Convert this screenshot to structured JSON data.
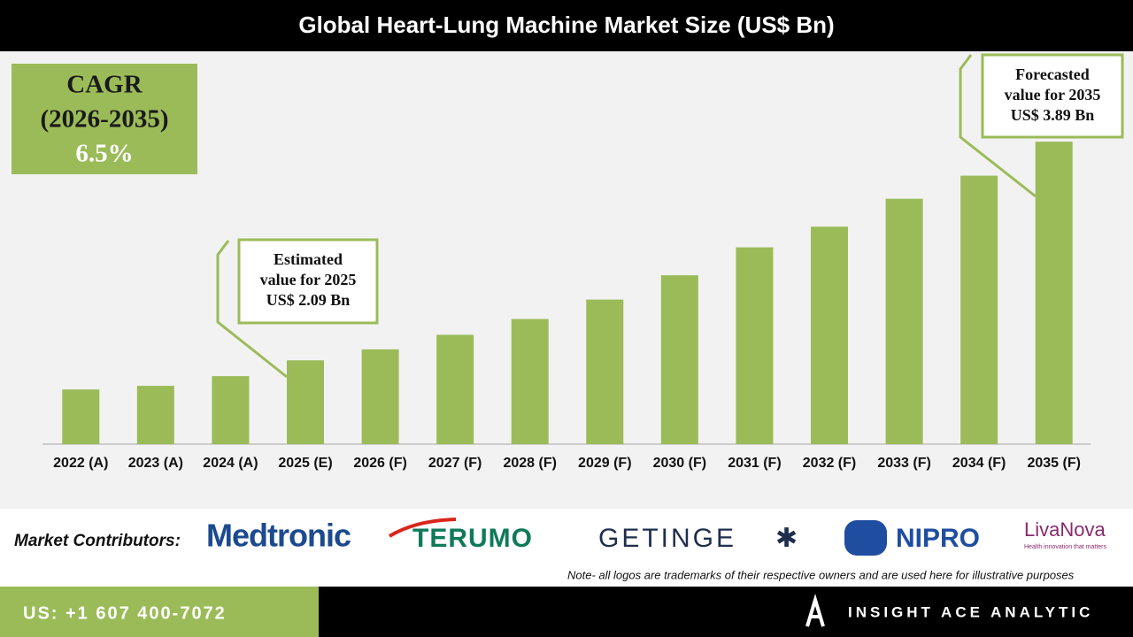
{
  "chart_data": {
    "type": "bar",
    "title": "Global Heart-Lung Machine Market Size (US$ Bn)",
    "categories": [
      "2022 (A)",
      "2023 (A)",
      "2024 (A)",
      "2025 (E)",
      "2026 (F)",
      "2027 (F)",
      "2028 (F)",
      "2029 (F)",
      "2030 (F)",
      "2031 (F)",
      "2032 (F)",
      "2033 (F)",
      "2034 (F)",
      "2035 (F)"
    ],
    "values": [
      1.85,
      1.88,
      1.96,
      2.09,
      2.18,
      2.3,
      2.43,
      2.59,
      2.79,
      3.02,
      3.19,
      3.42,
      3.61,
      3.89
    ],
    "color": "#9bbb59",
    "ylim": [
      1.4,
      4.0
    ],
    "annotations": [
      {
        "lines": [
          "Estimated",
          "value for 2025",
          "US$ 2.09 Bn"
        ]
      },
      {
        "lines": [
          "Forecasted",
          "value for 2035",
          "US$ 3.89 Bn"
        ]
      }
    ]
  },
  "cagr": {
    "label": "CAGR",
    "period": "(2026-2035)",
    "value": "6.5%"
  },
  "contributors": {
    "label": "Market Contributors:",
    "logos": [
      "Medtronic",
      "TERUMO",
      "GETINGE",
      "NIPRO",
      "LivaNova"
    ],
    "tagline": "Health innovation that matters"
  },
  "note": "Note- all logos are trademarks of their respective owners and are used here for illustrative purposes",
  "footer": {
    "phone": "US: +1 607 400-7072",
    "brand": "INSIGHT ACE ANALYTIC"
  }
}
